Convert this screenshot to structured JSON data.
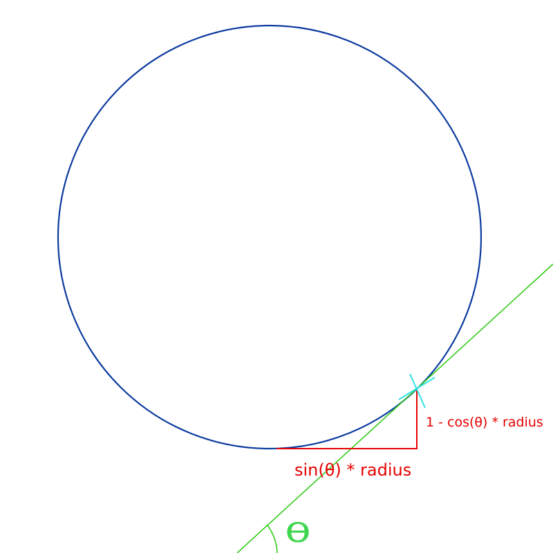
{
  "labels": {
    "horizontal": "sin(θ) * radius",
    "vertical": "1 - cos(θ) * radius",
    "angle": "θ"
  },
  "colors": {
    "circle": "#0a3a9e",
    "tangent": "#33cc1a",
    "legs": "#e60000",
    "point_marker": "#2ee0e6",
    "angle_symbol": "#3fd64f",
    "background": "#ffffff"
  },
  "icons": {
    "tangent_point_marker": "cross-marker-icon"
  }
}
